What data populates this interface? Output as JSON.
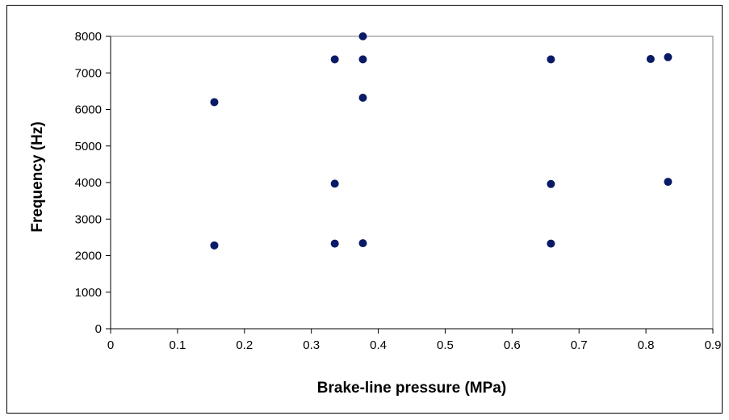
{
  "chart_data": {
    "type": "scatter",
    "title": "",
    "xlabel": "Brake-line pressure (MPa)",
    "ylabel": "Frequency (Hz)",
    "xlim": [
      0,
      0.9
    ],
    "ylim": [
      0,
      8000
    ],
    "x_ticks": [
      "0",
      "0.1",
      "0.2",
      "0.3",
      "0.4",
      "0.5",
      "0.6",
      "0.7",
      "0.8",
      "0.9"
    ],
    "y_ticks": [
      "0",
      "1000",
      "2000",
      "3000",
      "4000",
      "5000",
      "6000",
      "7000",
      "8000"
    ],
    "grid": false,
    "legend": "none",
    "colors": {
      "marker": "#0a1a66",
      "plot_background": "#ffffff",
      "axis": "#7f7f7f"
    },
    "points": [
      {
        "x": 0.155,
        "y": 6200
      },
      {
        "x": 0.155,
        "y": 2280
      },
      {
        "x": 0.335,
        "y": 7370
      },
      {
        "x": 0.335,
        "y": 3970
      },
      {
        "x": 0.335,
        "y": 2330
      },
      {
        "x": 0.377,
        "y": 8000
      },
      {
        "x": 0.377,
        "y": 7370
      },
      {
        "x": 0.377,
        "y": 6320
      },
      {
        "x": 0.377,
        "y": 2340
      },
      {
        "x": 0.658,
        "y": 7370
      },
      {
        "x": 0.658,
        "y": 3960
      },
      {
        "x": 0.658,
        "y": 2330
      },
      {
        "x": 0.807,
        "y": 7380
      },
      {
        "x": 0.833,
        "y": 7430
      },
      {
        "x": 0.833,
        "y": 4020
      }
    ]
  }
}
